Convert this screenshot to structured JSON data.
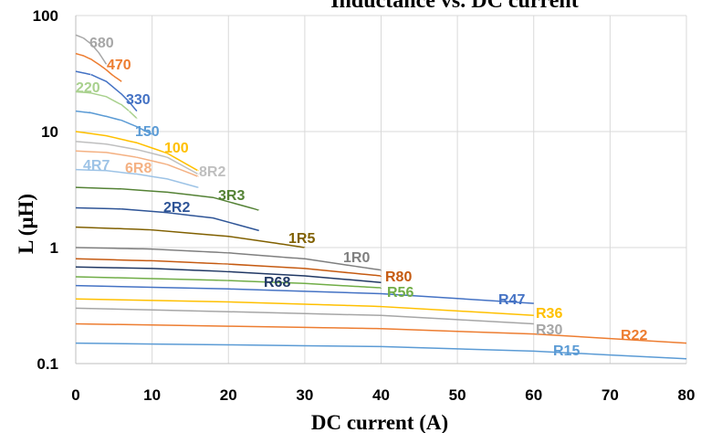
{
  "chart_data": {
    "type": "line",
    "title": "Inductance vs. DC current",
    "xlabel": "DC current (A)",
    "ylabel": "L (μH)",
    "xlim": [
      0,
      80
    ],
    "ylim": [
      0.1,
      100
    ],
    "yscale": "log",
    "grid": true,
    "legend": "inline-labels",
    "x_ticks": [
      "0",
      "10",
      "20",
      "30",
      "40",
      "50",
      "60",
      "70",
      "80"
    ],
    "y_ticks": [
      "0.1",
      "1",
      "10",
      "100"
    ],
    "series": [
      {
        "name": "680",
        "color": "#a6a6a6",
        "x": [
          0,
          1,
          2,
          3,
          4
        ],
        "y": [
          68,
          64,
          57,
          48,
          38
        ]
      },
      {
        "name": "470",
        "color": "#ed7d31",
        "x": [
          0,
          1,
          2,
          3,
          4,
          5,
          6
        ],
        "y": [
          47,
          45,
          42,
          38,
          34,
          30,
          27
        ]
      },
      {
        "name": "330",
        "color": "#4472c4",
        "x": [
          0,
          2,
          4,
          6,
          7,
          8
        ],
        "y": [
          33,
          31,
          27,
          21,
          18,
          15
        ]
      },
      {
        "name": "220",
        "color": "#a9d18e",
        "x": [
          0,
          2,
          4,
          6,
          7,
          8
        ],
        "y": [
          22,
          21.5,
          20,
          17,
          15,
          13
        ]
      },
      {
        "name": "150",
        "color": "#5b9bd5",
        "x": [
          0,
          2,
          4,
          6,
          8,
          9,
          10
        ],
        "y": [
          15,
          14.5,
          13.5,
          12.5,
          11,
          10.2,
          9.5
        ]
      },
      {
        "name": "100",
        "color": "#ffc000",
        "x": [
          0,
          4,
          8,
          12,
          16
        ],
        "y": [
          10,
          9.2,
          8,
          6.5,
          4.6
        ]
      },
      {
        "name": "8R2",
        "color": "#bfbfbf",
        "x": [
          0,
          4,
          8,
          12,
          16
        ],
        "y": [
          8.2,
          7.8,
          7,
          6,
          4.3
        ]
      },
      {
        "name": "6R8",
        "color": "#f4b183",
        "x": [
          0,
          4,
          8,
          12,
          16
        ],
        "y": [
          6.8,
          6.6,
          6,
          5.2,
          4.1
        ]
      },
      {
        "name": "4R7",
        "color": "#9dc3e6",
        "x": [
          0,
          4,
          8,
          12,
          16
        ],
        "y": [
          4.7,
          4.6,
          4.3,
          3.9,
          3.3
        ]
      },
      {
        "name": "3R3",
        "color": "#548235",
        "x": [
          0,
          6,
          12,
          18,
          24
        ],
        "y": [
          3.3,
          3.2,
          3,
          2.7,
          2.1
        ]
      },
      {
        "name": "2R2",
        "color": "#2f5597",
        "x": [
          0,
          6,
          12,
          18,
          24
        ],
        "y": [
          2.2,
          2.15,
          2,
          1.8,
          1.4
        ]
      },
      {
        "name": "1R5",
        "color": "#806000",
        "x": [
          0,
          10,
          20,
          30
        ],
        "y": [
          1.5,
          1.42,
          1.25,
          1.0
        ]
      },
      {
        "name": "1R0",
        "color": "#7f7f7f",
        "x": [
          0,
          10,
          20,
          30,
          40
        ],
        "y": [
          1.0,
          0.97,
          0.9,
          0.8,
          0.64
        ]
      },
      {
        "name": "R80",
        "color": "#c55a11",
        "x": [
          0,
          10,
          20,
          30,
          40
        ],
        "y": [
          0.8,
          0.77,
          0.72,
          0.66,
          0.57
        ]
      },
      {
        "name": "R68",
        "color": "#203864",
        "x": [
          0,
          10,
          20,
          30,
          40
        ],
        "y": [
          0.68,
          0.66,
          0.62,
          0.57,
          0.5
        ]
      },
      {
        "name": "R56",
        "color": "#70ad47",
        "x": [
          0,
          10,
          20,
          30,
          40
        ],
        "y": [
          0.56,
          0.54,
          0.52,
          0.49,
          0.45
        ]
      },
      {
        "name": "R47",
        "color": "#4472c4",
        "x": [
          0,
          20,
          40,
          60
        ],
        "y": [
          0.47,
          0.44,
          0.4,
          0.33
        ]
      },
      {
        "name": "R36",
        "color": "#ffc000",
        "x": [
          0,
          20,
          40,
          60
        ],
        "y": [
          0.36,
          0.34,
          0.31,
          0.26
        ]
      },
      {
        "name": "R30",
        "color": "#a6a6a6",
        "x": [
          0,
          20,
          40,
          60
        ],
        "y": [
          0.3,
          0.28,
          0.26,
          0.22
        ]
      },
      {
        "name": "R22",
        "color": "#ed7d31",
        "x": [
          0,
          20,
          40,
          60,
          80
        ],
        "y": [
          0.22,
          0.21,
          0.2,
          0.18,
          0.15
        ]
      },
      {
        "name": "R15",
        "color": "#5b9bd5",
        "x": [
          0,
          20,
          40,
          60,
          80
        ],
        "y": [
          0.15,
          0.145,
          0.14,
          0.128,
          0.11
        ]
      }
    ]
  }
}
